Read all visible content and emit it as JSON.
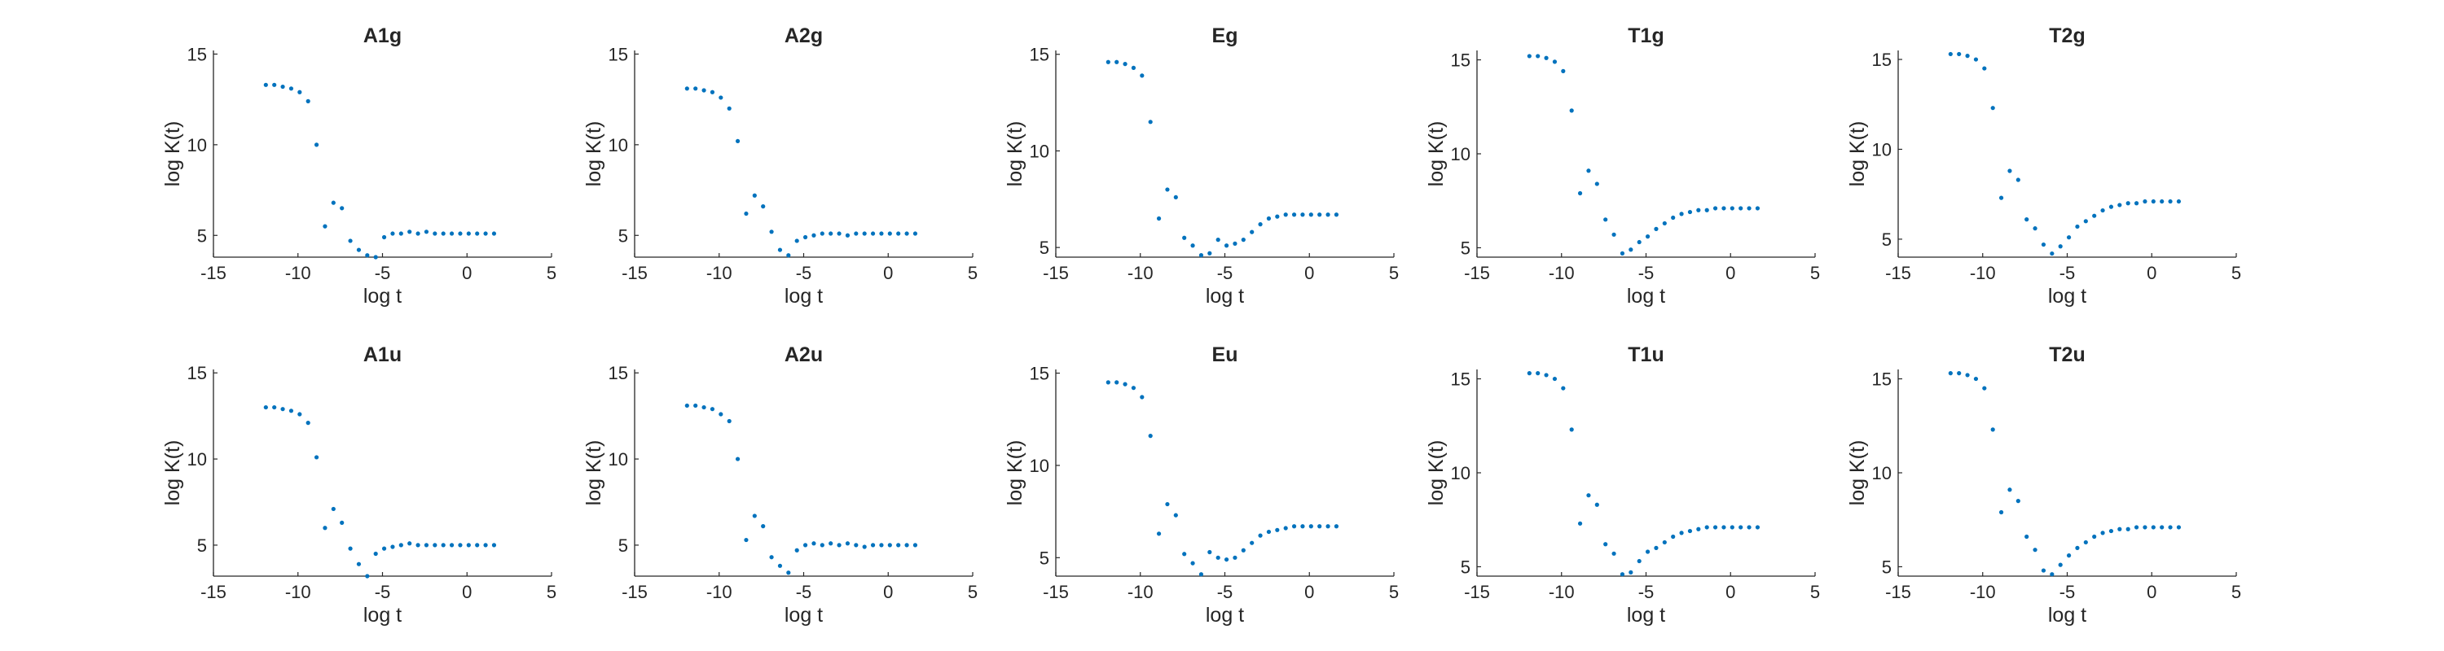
{
  "figure": {
    "background": "#ffffff",
    "marker_color": "#0072bd",
    "axis_color": "#262626",
    "grid": false,
    "legend": "none"
  },
  "chart_data": [
    {
      "type": "scatter",
      "title": "A1g",
      "xlabel": "log t",
      "ylabel": "log K(t)",
      "xlim": [
        -15,
        5
      ],
      "ylim": [
        3.8,
        15.2
      ],
      "xticks": [
        -15,
        -10,
        -5,
        0,
        5
      ],
      "yticks": [
        5,
        10,
        15
      ],
      "points": [
        [
          -11.9,
          13.3
        ],
        [
          -11.4,
          13.3
        ],
        [
          -10.9,
          13.2
        ],
        [
          -10.4,
          13.1
        ],
        [
          -9.9,
          12.9
        ],
        [
          -9.4,
          12.4
        ],
        [
          -8.9,
          10.0
        ],
        [
          -8.4,
          5.5
        ],
        [
          -7.9,
          6.8
        ],
        [
          -7.4,
          6.5
        ],
        [
          -6.9,
          4.7
        ],
        [
          -6.4,
          4.2
        ],
        [
          -5.9,
          3.9
        ],
        [
          -5.4,
          3.8
        ],
        [
          -4.9,
          4.9
        ],
        [
          -4.4,
          5.1
        ],
        [
          -3.9,
          5.1
        ],
        [
          -3.4,
          5.2
        ],
        [
          -2.9,
          5.1
        ],
        [
          -2.4,
          5.2
        ],
        [
          -1.9,
          5.1
        ],
        [
          -1.4,
          5.1
        ],
        [
          -0.9,
          5.1
        ],
        [
          -0.4,
          5.1
        ],
        [
          0.1,
          5.1
        ],
        [
          0.6,
          5.1
        ],
        [
          1.1,
          5.1
        ],
        [
          1.6,
          5.1
        ]
      ]
    },
    {
      "type": "scatter",
      "title": "A2g",
      "xlabel": "log t",
      "ylabel": "log K(t)",
      "xlim": [
        -15,
        5
      ],
      "ylim": [
        3.8,
        15.2
      ],
      "xticks": [
        -15,
        -10,
        -5,
        0,
        5
      ],
      "yticks": [
        5,
        10,
        15
      ],
      "points": [
        [
          -11.9,
          13.1
        ],
        [
          -11.4,
          13.1
        ],
        [
          -10.9,
          13.0
        ],
        [
          -10.4,
          12.9
        ],
        [
          -9.9,
          12.6
        ],
        [
          -9.4,
          12.0
        ],
        [
          -8.9,
          10.2
        ],
        [
          -8.4,
          6.2
        ],
        [
          -7.9,
          7.2
        ],
        [
          -7.4,
          6.6
        ],
        [
          -6.9,
          5.2
        ],
        [
          -6.4,
          4.2
        ],
        [
          -5.9,
          3.9
        ],
        [
          -5.4,
          4.7
        ],
        [
          -4.9,
          4.9
        ],
        [
          -4.4,
          5.0
        ],
        [
          -3.9,
          5.1
        ],
        [
          -3.4,
          5.1
        ],
        [
          -2.9,
          5.1
        ],
        [
          -2.4,
          5.0
        ],
        [
          -1.9,
          5.1
        ],
        [
          -1.4,
          5.1
        ],
        [
          -0.9,
          5.1
        ],
        [
          -0.4,
          5.1
        ],
        [
          0.1,
          5.1
        ],
        [
          0.6,
          5.1
        ],
        [
          1.1,
          5.1
        ],
        [
          1.6,
          5.1
        ]
      ]
    },
    {
      "type": "scatter",
      "title": "Eg",
      "xlabel": "log t",
      "ylabel": "log K(t)",
      "xlim": [
        -15,
        5
      ],
      "ylim": [
        4.5,
        15.2
      ],
      "xticks": [
        -15,
        -10,
        -5,
        0,
        5
      ],
      "yticks": [
        5,
        10,
        15
      ],
      "points": [
        [
          -11.9,
          14.6
        ],
        [
          -11.4,
          14.6
        ],
        [
          -10.9,
          14.5
        ],
        [
          -10.4,
          14.3
        ],
        [
          -9.9,
          13.9
        ],
        [
          -9.4,
          11.5
        ],
        [
          -8.9,
          6.5
        ],
        [
          -8.4,
          8.0
        ],
        [
          -7.9,
          7.6
        ],
        [
          -7.4,
          5.5
        ],
        [
          -6.9,
          5.1
        ],
        [
          -6.4,
          4.6
        ],
        [
          -5.9,
          4.7
        ],
        [
          -5.4,
          5.4
        ],
        [
          -4.9,
          5.1
        ],
        [
          -4.4,
          5.2
        ],
        [
          -3.9,
          5.4
        ],
        [
          -3.4,
          5.8
        ],
        [
          -2.9,
          6.2
        ],
        [
          -2.4,
          6.5
        ],
        [
          -1.9,
          6.6
        ],
        [
          -1.4,
          6.7
        ],
        [
          -0.9,
          6.7
        ],
        [
          -0.4,
          6.7
        ],
        [
          0.1,
          6.7
        ],
        [
          0.6,
          6.7
        ],
        [
          1.1,
          6.7
        ],
        [
          1.6,
          6.7
        ]
      ]
    },
    {
      "type": "scatter",
      "title": "T1g",
      "xlabel": "log t",
      "ylabel": "log K(t)",
      "xlim": [
        -15,
        5
      ],
      "ylim": [
        4.5,
        15.5
      ],
      "xticks": [
        -15,
        -10,
        -5,
        0,
        5
      ],
      "yticks": [
        5,
        10,
        15
      ],
      "points": [
        [
          -11.9,
          15.2
        ],
        [
          -11.4,
          15.2
        ],
        [
          -10.9,
          15.1
        ],
        [
          -10.4,
          14.9
        ],
        [
          -9.9,
          14.4
        ],
        [
          -9.4,
          12.3
        ],
        [
          -8.9,
          7.9
        ],
        [
          -8.4,
          9.1
        ],
        [
          -7.9,
          8.4
        ],
        [
          -7.4,
          6.5
        ],
        [
          -6.9,
          5.7
        ],
        [
          -6.4,
          4.7
        ],
        [
          -5.9,
          4.9
        ],
        [
          -5.4,
          5.3
        ],
        [
          -4.9,
          5.6
        ],
        [
          -4.4,
          6.0
        ],
        [
          -3.9,
          6.3
        ],
        [
          -3.4,
          6.6
        ],
        [
          -2.9,
          6.8
        ],
        [
          -2.4,
          6.9
        ],
        [
          -1.9,
          7.0
        ],
        [
          -1.4,
          7.0
        ],
        [
          -0.9,
          7.1
        ],
        [
          -0.4,
          7.1
        ],
        [
          0.1,
          7.1
        ],
        [
          0.6,
          7.1
        ],
        [
          1.1,
          7.1
        ],
        [
          1.6,
          7.1
        ]
      ]
    },
    {
      "type": "scatter",
      "title": "T2g",
      "xlabel": "log t",
      "ylabel": "log K(t)",
      "xlim": [
        -15,
        5
      ],
      "ylim": [
        4.0,
        15.5
      ],
      "xticks": [
        -15,
        -10,
        -5,
        0,
        5
      ],
      "yticks": [
        5,
        10,
        15
      ],
      "points": [
        [
          -11.9,
          15.3
        ],
        [
          -11.4,
          15.3
        ],
        [
          -10.9,
          15.2
        ],
        [
          -10.4,
          15.0
        ],
        [
          -9.9,
          14.5
        ],
        [
          -9.4,
          12.3
        ],
        [
          -8.9,
          7.3
        ],
        [
          -8.4,
          8.8
        ],
        [
          -7.9,
          8.3
        ],
        [
          -7.4,
          6.1
        ],
        [
          -6.9,
          5.6
        ],
        [
          -6.4,
          4.7
        ],
        [
          -5.9,
          4.2
        ],
        [
          -5.4,
          4.6
        ],
        [
          -4.9,
          5.1
        ],
        [
          -4.4,
          5.7
        ],
        [
          -3.9,
          6.0
        ],
        [
          -3.4,
          6.3
        ],
        [
          -2.9,
          6.6
        ],
        [
          -2.4,
          6.8
        ],
        [
          -1.9,
          6.9
        ],
        [
          -1.4,
          7.0
        ],
        [
          -0.9,
          7.0
        ],
        [
          -0.4,
          7.1
        ],
        [
          0.1,
          7.1
        ],
        [
          0.6,
          7.1
        ],
        [
          1.1,
          7.1
        ],
        [
          1.6,
          7.1
        ]
      ]
    },
    {
      "type": "scatter",
      "title": "A1u",
      "xlabel": "log t",
      "ylabel": "log K(t)",
      "xlim": [
        -15,
        5
      ],
      "ylim": [
        3.2,
        15.2
      ],
      "xticks": [
        -15,
        -10,
        -5,
        0,
        5
      ],
      "yticks": [
        5,
        10,
        15
      ],
      "points": [
        [
          -11.9,
          13.0
        ],
        [
          -11.4,
          13.0
        ],
        [
          -10.9,
          12.9
        ],
        [
          -10.4,
          12.8
        ],
        [
          -9.9,
          12.6
        ],
        [
          -9.4,
          12.1
        ],
        [
          -8.9,
          10.1
        ],
        [
          -8.4,
          6.0
        ],
        [
          -7.9,
          7.1
        ],
        [
          -7.4,
          6.3
        ],
        [
          -6.9,
          4.8
        ],
        [
          -6.4,
          3.9
        ],
        [
          -5.9,
          3.2
        ],
        [
          -5.4,
          4.5
        ],
        [
          -4.9,
          4.8
        ],
        [
          -4.4,
          4.9
        ],
        [
          -3.9,
          5.0
        ],
        [
          -3.4,
          5.1
        ],
        [
          -2.9,
          5.0
        ],
        [
          -2.4,
          5.0
        ],
        [
          -1.9,
          5.0
        ],
        [
          -1.4,
          5.0
        ],
        [
          -0.9,
          5.0
        ],
        [
          -0.4,
          5.0
        ],
        [
          0.1,
          5.0
        ],
        [
          0.6,
          5.0
        ],
        [
          1.1,
          5.0
        ],
        [
          1.6,
          5.0
        ]
      ]
    },
    {
      "type": "scatter",
      "title": "A2u",
      "xlabel": "log t",
      "ylabel": "log K(t)",
      "xlim": [
        -15,
        5
      ],
      "ylim": [
        3.2,
        15.2
      ],
      "xticks": [
        -15,
        -10,
        -5,
        0,
        5
      ],
      "yticks": [
        5,
        10,
        15
      ],
      "points": [
        [
          -11.9,
          13.1
        ],
        [
          -11.4,
          13.1
        ],
        [
          -10.9,
          13.0
        ],
        [
          -10.4,
          12.9
        ],
        [
          -9.9,
          12.6
        ],
        [
          -9.4,
          12.2
        ],
        [
          -8.9,
          10.0
        ],
        [
          -8.4,
          5.3
        ],
        [
          -7.9,
          6.7
        ],
        [
          -7.4,
          6.1
        ],
        [
          -6.9,
          4.3
        ],
        [
          -6.4,
          3.8
        ],
        [
          -5.9,
          3.4
        ],
        [
          -5.4,
          4.7
        ],
        [
          -4.9,
          5.0
        ],
        [
          -4.4,
          5.1
        ],
        [
          -3.9,
          5.0
        ],
        [
          -3.4,
          5.1
        ],
        [
          -2.9,
          5.0
        ],
        [
          -2.4,
          5.1
        ],
        [
          -1.9,
          5.0
        ],
        [
          -1.4,
          4.9
        ],
        [
          -0.9,
          5.0
        ],
        [
          -0.4,
          5.0
        ],
        [
          0.1,
          5.0
        ],
        [
          0.6,
          5.0
        ],
        [
          1.1,
          5.0
        ],
        [
          1.6,
          5.0
        ]
      ]
    },
    {
      "type": "scatter",
      "title": "Eu",
      "xlabel": "log t",
      "ylabel": "log K(t)",
      "xlim": [
        -15,
        5
      ],
      "ylim": [
        4.0,
        15.2
      ],
      "xticks": [
        -15,
        -10,
        -5,
        0,
        5
      ],
      "yticks": [
        5,
        10,
        15
      ],
      "points": [
        [
          -11.9,
          14.5
        ],
        [
          -11.4,
          14.5
        ],
        [
          -10.9,
          14.4
        ],
        [
          -10.4,
          14.2
        ],
        [
          -9.9,
          13.7
        ],
        [
          -9.4,
          11.6
        ],
        [
          -8.9,
          6.3
        ],
        [
          -8.4,
          7.9
        ],
        [
          -7.9,
          7.3
        ],
        [
          -7.4,
          5.2
        ],
        [
          -6.9,
          4.7
        ],
        [
          -6.4,
          4.1
        ],
        [
          -5.9,
          5.3
        ],
        [
          -5.4,
          5.0
        ],
        [
          -4.9,
          4.9
        ],
        [
          -4.4,
          5.0
        ],
        [
          -3.9,
          5.4
        ],
        [
          -3.4,
          5.8
        ],
        [
          -2.9,
          6.2
        ],
        [
          -2.4,
          6.4
        ],
        [
          -1.9,
          6.5
        ],
        [
          -1.4,
          6.6
        ],
        [
          -0.9,
          6.7
        ],
        [
          -0.4,
          6.7
        ],
        [
          0.1,
          6.7
        ],
        [
          0.6,
          6.7
        ],
        [
          1.1,
          6.7
        ],
        [
          1.6,
          6.7
        ]
      ]
    },
    {
      "type": "scatter",
      "title": "T1u",
      "xlabel": "log t",
      "ylabel": "log K(t)",
      "xlim": [
        -15,
        5
      ],
      "ylim": [
        4.5,
        15.5
      ],
      "xticks": [
        -15,
        -10,
        -5,
        0,
        5
      ],
      "yticks": [
        5,
        10,
        15
      ],
      "points": [
        [
          -11.9,
          15.3
        ],
        [
          -11.4,
          15.3
        ],
        [
          -10.9,
          15.2
        ],
        [
          -10.4,
          15.0
        ],
        [
          -9.9,
          14.5
        ],
        [
          -9.4,
          12.3
        ],
        [
          -8.9,
          7.3
        ],
        [
          -8.4,
          8.8
        ],
        [
          -7.9,
          8.3
        ],
        [
          -7.4,
          6.2
        ],
        [
          -6.9,
          5.7
        ],
        [
          -6.4,
          4.6
        ],
        [
          -5.9,
          4.7
        ],
        [
          -5.4,
          5.3
        ],
        [
          -4.9,
          5.8
        ],
        [
          -4.4,
          6.0
        ],
        [
          -3.9,
          6.3
        ],
        [
          -3.4,
          6.6
        ],
        [
          -2.9,
          6.8
        ],
        [
          -2.4,
          6.9
        ],
        [
          -1.9,
          7.0
        ],
        [
          -1.4,
          7.1
        ],
        [
          -0.9,
          7.1
        ],
        [
          -0.4,
          7.1
        ],
        [
          0.1,
          7.1
        ],
        [
          0.6,
          7.1
        ],
        [
          1.1,
          7.1
        ],
        [
          1.6,
          7.1
        ]
      ]
    },
    {
      "type": "scatter",
      "title": "T2u",
      "xlabel": "log t",
      "ylabel": "log K(t)",
      "xlim": [
        -15,
        5
      ],
      "ylim": [
        4.5,
        15.5
      ],
      "xticks": [
        -15,
        -10,
        -5,
        0,
        5
      ],
      "yticks": [
        5,
        10,
        15
      ],
      "points": [
        [
          -11.9,
          15.3
        ],
        [
          -11.4,
          15.3
        ],
        [
          -10.9,
          15.2
        ],
        [
          -10.4,
          15.0
        ],
        [
          -9.9,
          14.5
        ],
        [
          -9.4,
          12.3
        ],
        [
          -8.9,
          7.9
        ],
        [
          -8.4,
          9.1
        ],
        [
          -7.9,
          8.5
        ],
        [
          -7.4,
          6.6
        ],
        [
          -6.9,
          5.9
        ],
        [
          -6.4,
          4.8
        ],
        [
          -5.9,
          4.6
        ],
        [
          -5.4,
          5.1
        ],
        [
          -4.9,
          5.6
        ],
        [
          -4.4,
          6.0
        ],
        [
          -3.9,
          6.3
        ],
        [
          -3.4,
          6.6
        ],
        [
          -2.9,
          6.8
        ],
        [
          -2.4,
          6.9
        ],
        [
          -1.9,
          7.0
        ],
        [
          -1.4,
          7.0
        ],
        [
          -0.9,
          7.1
        ],
        [
          -0.4,
          7.1
        ],
        [
          0.1,
          7.1
        ],
        [
          0.6,
          7.1
        ],
        [
          1.1,
          7.1
        ],
        [
          1.6,
          7.1
        ]
      ]
    }
  ]
}
